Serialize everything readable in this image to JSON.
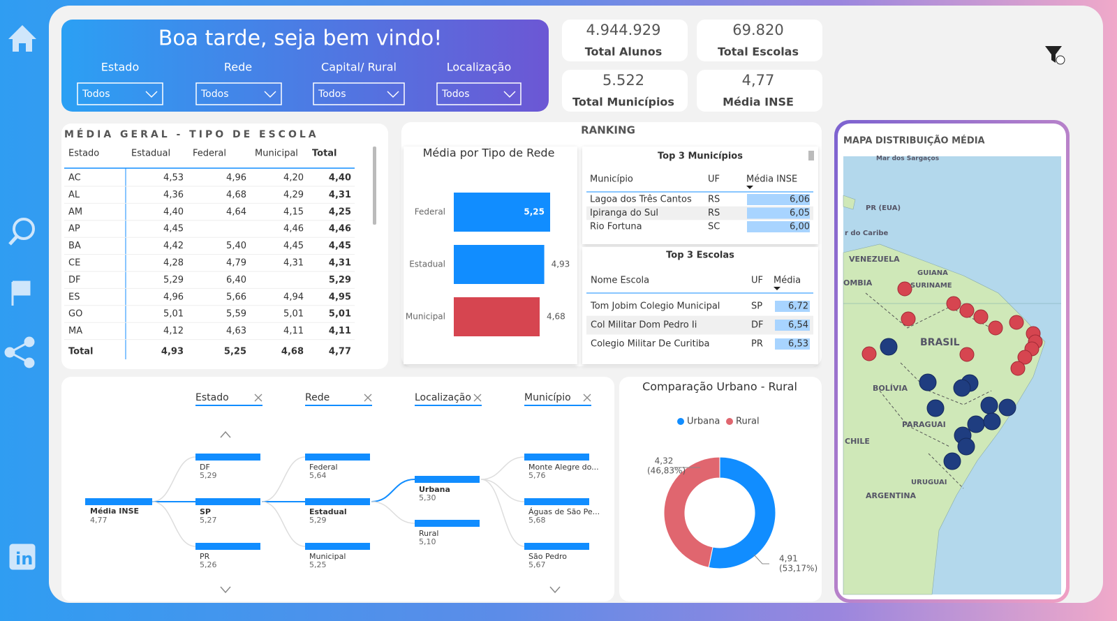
{
  "header": {
    "title": "Boa tarde, seja bem vindo!",
    "filters": [
      {
        "label": "Estado",
        "value": "Todos"
      },
      {
        "label": "Rede",
        "value": "Todos"
      },
      {
        "label": "Capital/ Rural",
        "value": "Todos"
      },
      {
        "label": "Localização",
        "value": "Todos"
      }
    ]
  },
  "kpis": [
    {
      "value": "4.944.929",
      "label": "Total Alunos"
    },
    {
      "value": "69.820",
      "label": "Total Escolas"
    },
    {
      "value": "5.522",
      "label": "Total Municípios"
    },
    {
      "value": "4,77",
      "label": "Média INSE"
    }
  ],
  "table": {
    "title": "MÉDIA GERAL - TIPO DE ESCOLA",
    "columns": [
      "Estado",
      "Estadual",
      "Federal",
      "Municipal",
      "Total"
    ],
    "rows": [
      [
        "AC",
        "4,53",
        "4,96",
        "4,20",
        "4,40"
      ],
      [
        "AL",
        "4,36",
        "4,68",
        "4,29",
        "4,31"
      ],
      [
        "AM",
        "4,40",
        "4,64",
        "4,15",
        "4,25"
      ],
      [
        "AP",
        "4,45",
        null,
        "4,46",
        "4,46"
      ],
      [
        "BA",
        "4,42",
        "5,40",
        "4,45",
        "4,45"
      ],
      [
        "CE",
        "4,28",
        "4,79",
        "4,31",
        "4,31"
      ],
      [
        "DF",
        "5,29",
        "6,40",
        null,
        "5,29"
      ],
      [
        "ES",
        "4,96",
        "5,66",
        "4,94",
        "4,95"
      ],
      [
        "GO",
        "5,01",
        "5,59",
        "5,01",
        "5,01"
      ],
      [
        "MA",
        "4,12",
        "4,63",
        "4,11",
        "4,11"
      ]
    ],
    "total": [
      "Total",
      "4,93",
      "5,25",
      "4,68",
      "4,77"
    ]
  },
  "ranking": {
    "title": "RANKING",
    "municipios": {
      "title": "Top 3 Municípios",
      "columns": [
        "Município",
        "UF",
        "Média INSE"
      ],
      "rows": [
        [
          "Lagoa dos Três Cantos",
          "RS",
          "6,06"
        ],
        [
          "Ipiranga do Sul",
          "RS",
          "6,05"
        ],
        [
          "Rio Fortuna",
          "SC",
          "6,00"
        ]
      ]
    },
    "escolas": {
      "title": "Top 3 Escolas",
      "columns": [
        "Nome Escola",
        "UF",
        "Média"
      ],
      "rows": [
        [
          "Tom Jobim Colegio Municipal",
          "SP",
          "6,72"
        ],
        [
          "Col Militar Dom Pedro Ii",
          "DF",
          "6,54"
        ],
        [
          "Colegio Militar De Curitiba",
          "PR",
          "6,53"
        ]
      ]
    }
  },
  "chart_data": [
    {
      "type": "bar",
      "title": "Média por Tipo de Rede",
      "orientation": "horizontal",
      "categories": [
        "Federal",
        "Estadual",
        "Municipal"
      ],
      "values": [
        5.25,
        4.93,
        4.68
      ],
      "value_labels": [
        "5,25",
        "4,93",
        "4,68"
      ],
      "colors": [
        "#118dff",
        "#118dff",
        "#d64550"
      ]
    },
    {
      "type": "pie",
      "title": "Comparação Urbano - Rural",
      "donut": true,
      "categories": [
        "Urbana",
        "Rural"
      ],
      "values": [
        4.91,
        4.32
      ],
      "value_labels": [
        "4,91",
        "4,32"
      ],
      "percent_labels": [
        "(53,17%)",
        "(46,83%)"
      ],
      "colors": [
        "#118dff",
        "#e0666f"
      ]
    }
  ],
  "tree": {
    "levels": [
      "Estado",
      "Rede",
      "Localização",
      "Município"
    ],
    "root": {
      "label": "Média INSE",
      "value": "4,77"
    },
    "columns": [
      [
        {
          "label": "DF",
          "value": "5,29"
        },
        {
          "label": "SP",
          "value": "5,27"
        },
        {
          "label": "PR",
          "value": "5,26"
        }
      ],
      [
        {
          "label": "Federal",
          "value": "5,64"
        },
        {
          "label": "Estadual",
          "value": "5,29"
        },
        {
          "label": "Municipal",
          "value": "5,25"
        }
      ],
      [
        {
          "label": "Urbana",
          "value": "5,30"
        },
        {
          "label": "Rural",
          "value": "5,10"
        }
      ],
      [
        {
          "label": "Monte Alegre do...",
          "value": "5,76"
        },
        {
          "label": "Águas de São Pe...",
          "value": "5,68"
        },
        {
          "label": "São Pedro",
          "value": "5,67"
        }
      ]
    ]
  },
  "map": {
    "title": "MAPA DISTRIBUIÇÃO MÉDIA",
    "labels": [
      "Mar dos Sargaços",
      "PR (EUA)",
      "r do Caribe",
      "VENEZUELA",
      "OMBIA",
      "GUIANA",
      "SURINAME",
      "BRASIL",
      "BOLÍVIA",
      "PARAGUAI",
      "CHILE",
      "URUGUAI",
      "ARGENTINA"
    ]
  }
}
